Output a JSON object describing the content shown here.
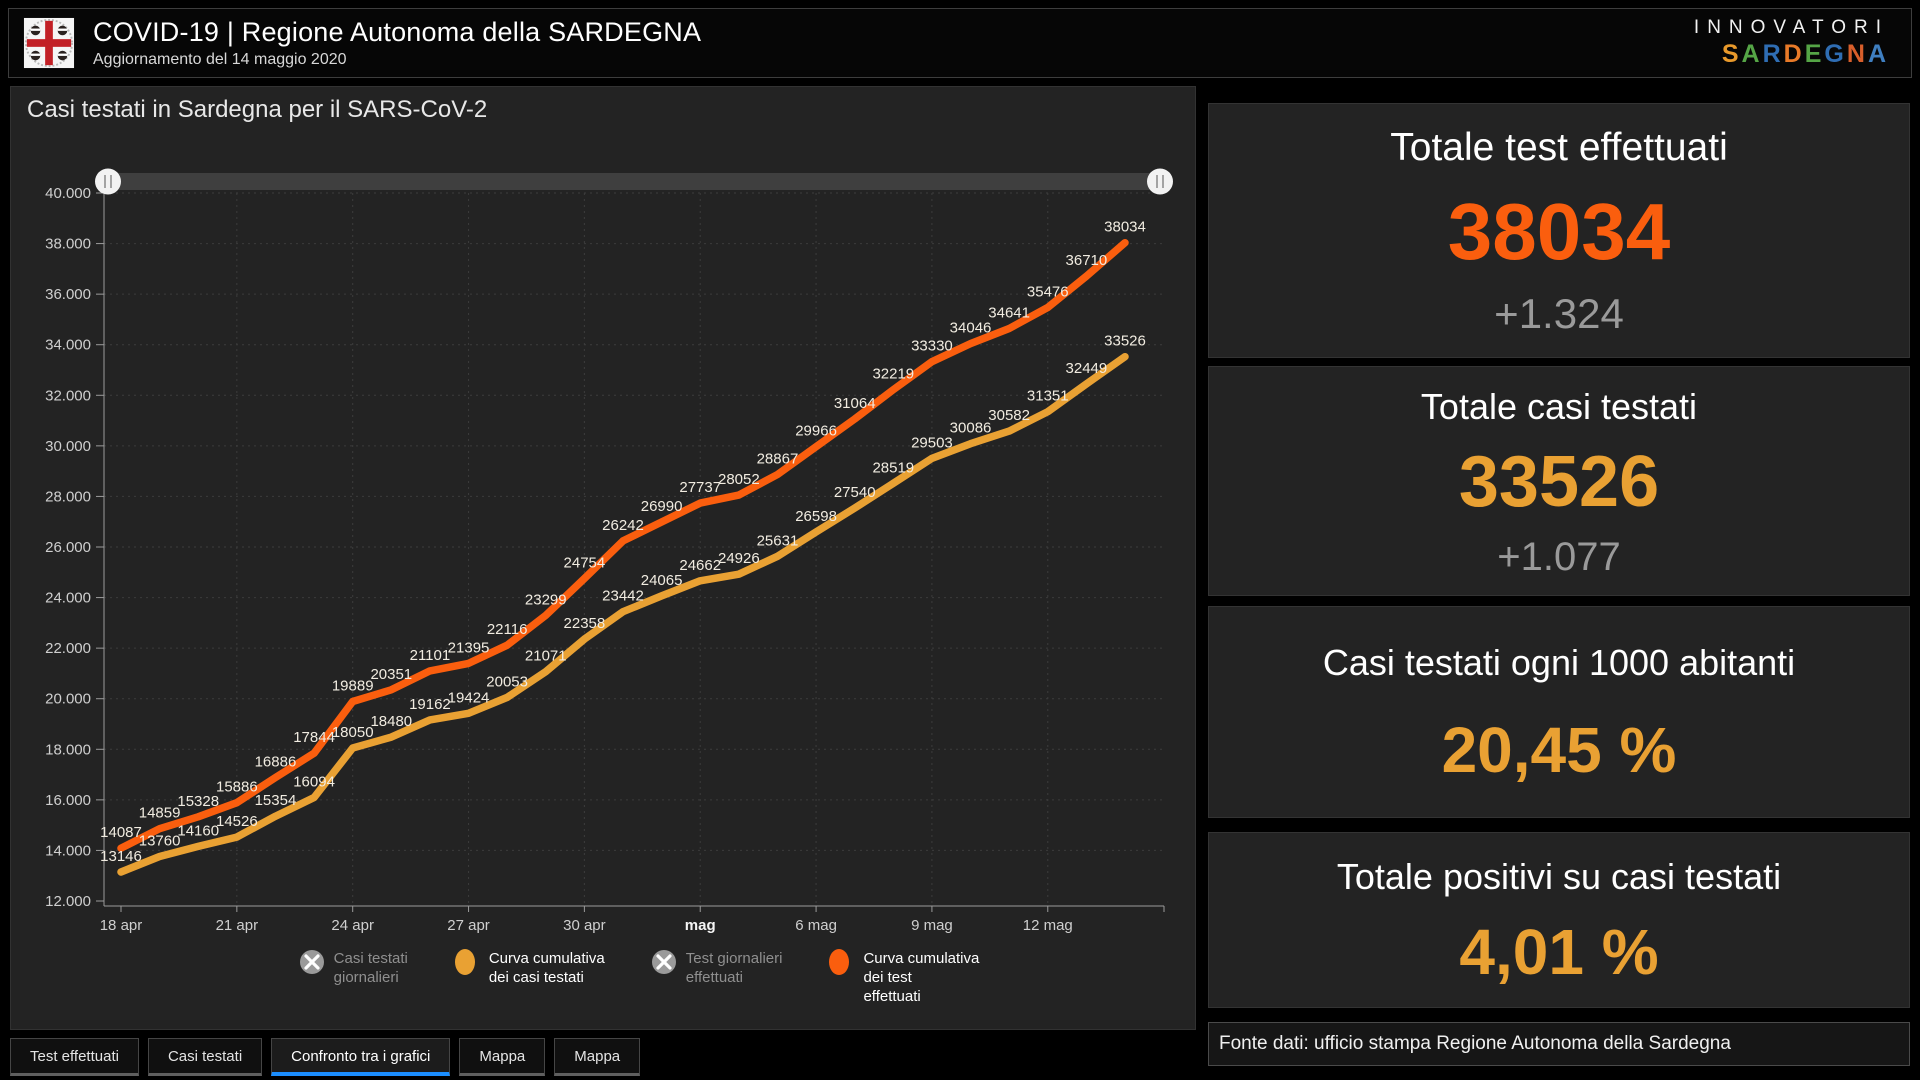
{
  "header": {
    "title": "COVID-19 | Regione Autonoma della SARDEGNA",
    "subtitle": "Aggiornamento del 14 maggio 2020",
    "brand": {
      "line1": "INNOVATORI",
      "letters": [
        {
          "ch": "S",
          "color": "#e8992b"
        },
        {
          "ch": "A",
          "color": "#55a546"
        },
        {
          "ch": "R",
          "color": "#2f6db3"
        },
        {
          "ch": "D",
          "color": "#e87a28"
        },
        {
          "ch": "E",
          "color": "#55a546"
        },
        {
          "ch": "G",
          "color": "#2f6db3"
        },
        {
          "ch": "N",
          "color": "#d95f2b"
        },
        {
          "ch": "A",
          "color": "#3f7fc1"
        }
      ]
    }
  },
  "chart": {
    "title": "Casi testati in Sardegna per il SARS-CoV-2"
  },
  "chart_data": {
    "type": "line",
    "title": "Casi testati in Sardegna per il SARS-CoV-2",
    "x_tick_labels": [
      "18 apr",
      "21 apr",
      "24 apr",
      "27 apr",
      "30 apr",
      "mag",
      "6 mag",
      "9 mag",
      "12 mag"
    ],
    "x_tick_every": 3,
    "x_tick_bold_index": 5,
    "ylim": [
      12000,
      40000
    ],
    "y_tick_step": 2000,
    "y_tick_labels": [
      "12.000",
      "14.000",
      "16.000",
      "18.000",
      "20.000",
      "22.000",
      "24.000",
      "26.000",
      "28.000",
      "30.000",
      "32.000",
      "34.000",
      "36.000",
      "38.000",
      "40.000"
    ],
    "grid": "dotted",
    "legend_position": "bottom",
    "series": [
      {
        "name": "Curva cumulativa dei test effettuati",
        "color": "#fa5e0e",
        "values": [
          14087,
          14859,
          15328,
          15886,
          16886,
          17844,
          19889,
          20351,
          21101,
          21395,
          22116,
          23299,
          24754,
          26242,
          26990,
          27737,
          28052,
          28867,
          29966,
          31064,
          32219,
          33330,
          34046,
          34641,
          35476,
          36710,
          38034
        ]
      },
      {
        "name": "Curva cumulativa dei casi testati",
        "color": "#e9a133",
        "values": [
          13146,
          13760,
          14160,
          14526,
          15354,
          16094,
          18050,
          18480,
          19162,
          19424,
          20053,
          21071,
          22358,
          23442,
          24065,
          24662,
          24926,
          25631,
          26598,
          27540,
          28519,
          29503,
          30086,
          30582,
          31351,
          32449,
          33526
        ]
      }
    ],
    "legend": [
      {
        "lines": [
          "Casi testati",
          "giornalieri"
        ],
        "enabled": false,
        "color": "#9a9a9a"
      },
      {
        "lines": [
          "Curva cumulativa",
          "dei casi testati"
        ],
        "enabled": true,
        "color": "#e9a133"
      },
      {
        "lines": [
          "Test giornalieri",
          "effettuati"
        ],
        "enabled": false,
        "color": "#9a9a9a"
      },
      {
        "lines": [
          "Curva cumulativa",
          "dei test",
          "effettuati"
        ],
        "enabled": true,
        "color": "#fa5e0e"
      }
    ]
  },
  "cards": [
    {
      "title": "Totale test effettuati",
      "value": "38034",
      "delta": "+1.324",
      "value_color": "#fa5e0e"
    },
    {
      "title": "Totale casi testati",
      "value": "33526",
      "delta": "+1.077",
      "value_color": "#e9a133"
    },
    {
      "title": "Casi testati ogni 1000 abitanti",
      "value": "20,45 %",
      "value_color": "#e9a133"
    },
    {
      "title": "Totale positivi su casi testati",
      "value": "4,01 %",
      "value_color": "#e9a133"
    }
  ],
  "source_note": "Fonte dati: ufficio stampa Regione Autonoma della Sardegna",
  "tabs": [
    {
      "label": "Test effettuati",
      "active": false
    },
    {
      "label": "Casi testati",
      "active": false
    },
    {
      "label": "Confronto tra i grafici",
      "active": true
    },
    {
      "label": "Mappa",
      "active": false
    },
    {
      "label": "Mappa",
      "active": false
    }
  ],
  "colors": {
    "accent_orange": "#fa5e0e",
    "accent_gold": "#e9a133",
    "tab_active_underline": "#1b8eff",
    "delta_gray": "#9a9a9a",
    "grid": "#3c3c3c",
    "axis": "#9b9b9b",
    "data_label": "#f1ece1"
  }
}
